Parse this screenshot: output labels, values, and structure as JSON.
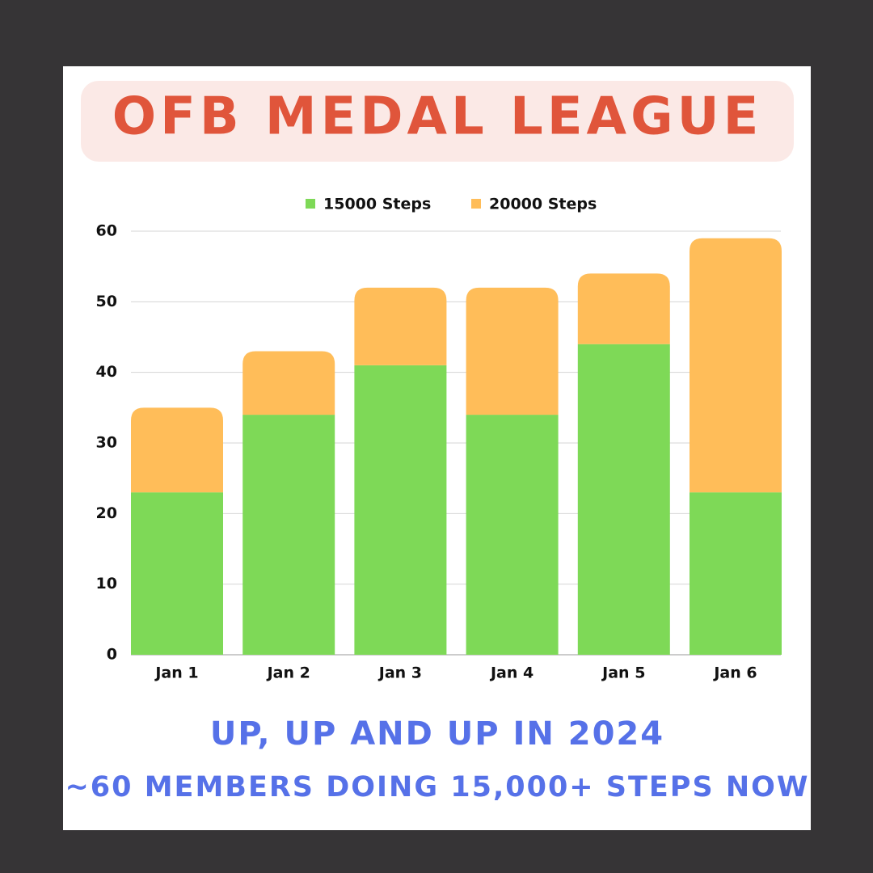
{
  "chart_data": {
    "type": "bar",
    "stacked": true,
    "title": "OFB MEDAL LEAGUE",
    "categories": [
      "Jan 1",
      "Jan 2",
      "Jan 3",
      "Jan 4",
      "Jan 5",
      "Jan 6"
    ],
    "series": [
      {
        "name": "15000 Steps",
        "color": "#7ed957",
        "values": [
          23,
          34,
          41,
          34,
          44,
          23
        ]
      },
      {
        "name": "20000 Steps",
        "color": "#ffbd59",
        "values": [
          12,
          9,
          11,
          18,
          10,
          36
        ]
      }
    ],
    "ylim": [
      0,
      60
    ],
    "yticks": [
      0,
      10,
      20,
      30,
      40,
      50,
      60
    ],
    "grid": true,
    "legend": "top",
    "subtitle": "UP, UP AND UP IN 2024",
    "caption": "~60 MEMBERS DOING 15,000+ STEPS NOW"
  }
}
